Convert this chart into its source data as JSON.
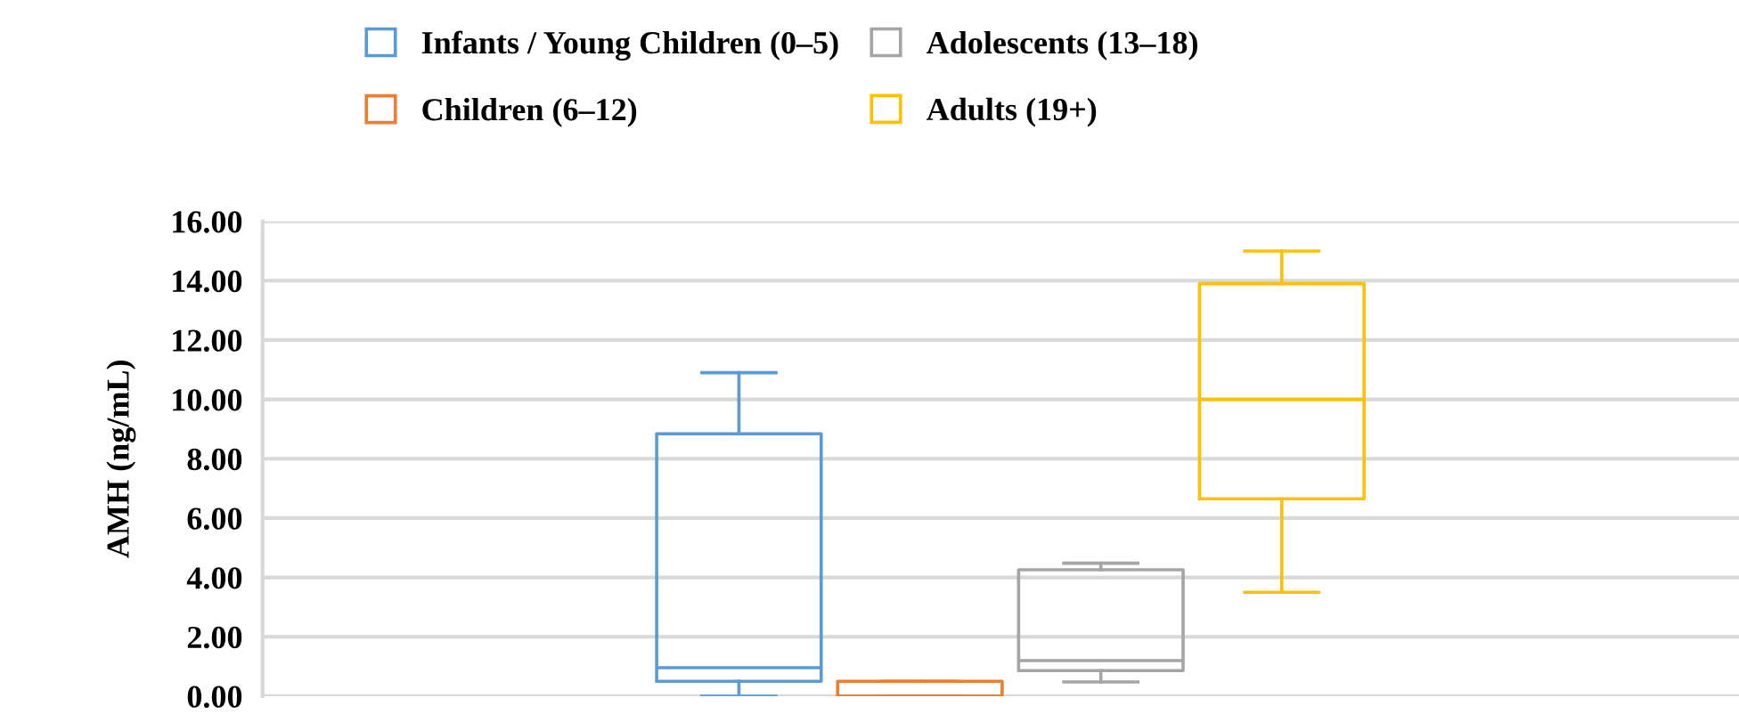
{
  "chart_data": {
    "type": "box",
    "ylabel": "AMH (ng/mL)",
    "categories": [
      null
    ],
    "ylim": [
      0,
      16
    ],
    "yticks": [
      {
        "value": 0,
        "label": "0.00"
      },
      {
        "value": 2,
        "label": "2.00"
      },
      {
        "value": 4,
        "label": "4.00"
      },
      {
        "value": 6,
        "label": "6.00"
      },
      {
        "value": 8,
        "label": "8.00"
      },
      {
        "value": 10,
        "label": "10.00"
      },
      {
        "value": 12,
        "label": "12.00"
      },
      {
        "value": 14,
        "label": "14.00"
      },
      {
        "value": 16,
        "label": "16.00"
      }
    ],
    "grid": "y",
    "legend": "top",
    "series": [
      {
        "name": "Infants / Young Children (0–5)",
        "color": "#5b9bd5",
        "boxes": [
          {
            "low": 0,
            "q1": 0.5,
            "median": 0.96,
            "q3": 8.84,
            "high": 10.9
          }
        ]
      },
      {
        "name": "Children (6–12)",
        "color": "#ed7d31",
        "boxes": [
          {
            "low": 0,
            "q1": 0,
            "median": 0,
            "q3": 0.5,
            "high": 0.5
          }
        ]
      },
      {
        "name": "Adolescents (13–18)",
        "color": "#a5a5a5",
        "boxes": [
          {
            "low": 0.48,
            "q1": 0.86,
            "median": 1.2,
            "q3": 4.26,
            "high": 4.48
          }
        ]
      },
      {
        "name": "Adults (19+)",
        "color": "#ffc000",
        "boxes": [
          {
            "low": 3.5,
            "q1": 6.65,
            "median": 10,
            "q3": 13.9,
            "high": 15
          }
        ]
      }
    ]
  }
}
